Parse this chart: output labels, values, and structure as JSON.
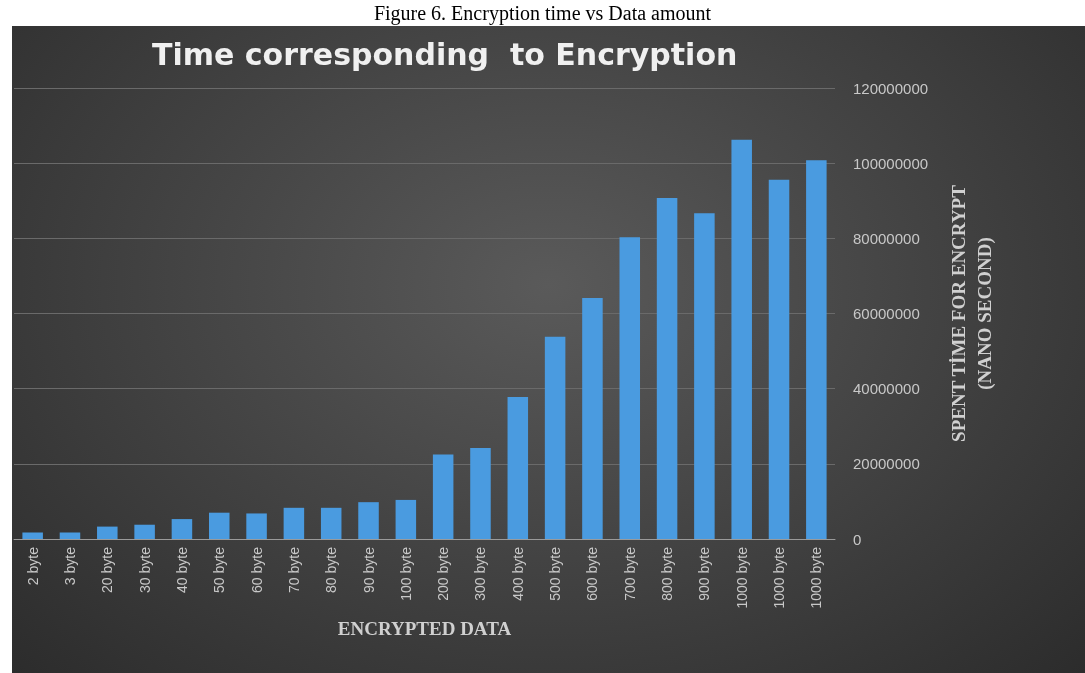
{
  "chart_data": {
    "type": "bar",
    "title": "Time corresponding  to Encryption",
    "xlabel": "ENCRYPTED DATA",
    "ylabel": "SPENT TİME FOR ENCRYPT\n(NANO SECOND)",
    "annotations": [
      "Figure 6. Encryption time vs Data amount"
    ],
    "categories": [
      "2 byte",
      "3 byte",
      "20 byte",
      "30 byte",
      "40 byte",
      "50 byte",
      "60 byte",
      "70 byte",
      "80 byte",
      "90 byte",
      "100 byte",
      "200 byte",
      "300 byte",
      "400 byte",
      "500 byte",
      "600 byte",
      "700 byte",
      "800 byte",
      "900 byte",
      "1000 byte",
      "1000 byte",
      "1000 byte"
    ],
    "values": [
      1700000,
      1700000,
      3300000,
      3800000,
      5300000,
      7000000,
      6800000,
      8300000,
      8300000,
      9800000,
      10400000,
      22500000,
      24200000,
      37800000,
      53800000,
      64100000,
      80300000,
      90700000,
      86700000,
      106200000,
      95600000,
      100800000
    ],
    "color": "#4a9be0",
    "ylim": [
      0,
      120000000
    ],
    "yticks": [
      0,
      20000000,
      40000000,
      60000000,
      80000000,
      100000000,
      120000000
    ],
    "grid": "y"
  }
}
